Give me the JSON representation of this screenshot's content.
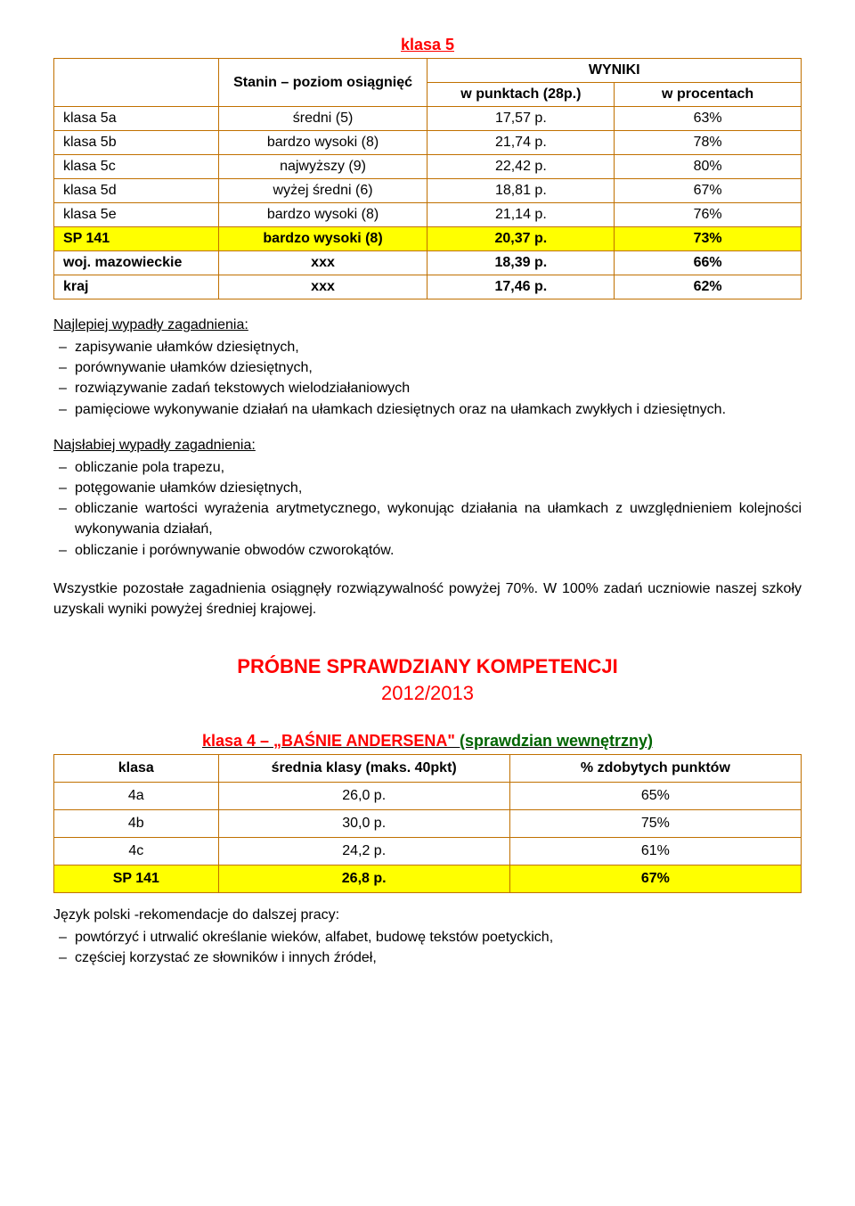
{
  "title": "klasa 5",
  "table1": {
    "header": {
      "stanin": "Stanin – poziom osiągnięć",
      "wyniki": "WYNIKI",
      "pkt": "w punktach (28p.)",
      "pct": "w procentach"
    },
    "rows": [
      {
        "c1": "klasa 5a",
        "c2": "średni (5)",
        "c3": "17,57 p.",
        "c4": "63%",
        "hl": false,
        "bold": false
      },
      {
        "c1": "klasa 5b",
        "c2": "bardzo wysoki (8)",
        "c3": "21,74 p.",
        "c4": "78%",
        "hl": false,
        "bold": false
      },
      {
        "c1": "klasa 5c",
        "c2": "najwyższy (9)",
        "c3": "22,42 p.",
        "c4": "80%",
        "hl": false,
        "bold": false
      },
      {
        "c1": "klasa 5d",
        "c2": "wyżej średni (6)",
        "c3": "18,81 p.",
        "c4": "67%",
        "hl": false,
        "bold": false
      },
      {
        "c1": "klasa 5e",
        "c2": "bardzo wysoki (8)",
        "c3": "21,14 p.",
        "c4": "76%",
        "hl": false,
        "bold": false
      },
      {
        "c1": "SP 141",
        "c2": "bardzo wysoki (8)",
        "c3": "20,37 p.",
        "c4": "73%",
        "hl": true,
        "bold": true
      },
      {
        "c1": "woj. mazowieckie",
        "c2": "xxx",
        "c3": "18,39 p.",
        "c4": "66%",
        "hl": false,
        "bold": true
      },
      {
        "c1": "kraj",
        "c2": "xxx",
        "c3": "17,46 p.",
        "c4": "62%",
        "hl": false,
        "bold": true
      }
    ]
  },
  "best": {
    "heading": "Najlepiej wypadły zagadnienia:",
    "items": [
      "zapisywanie ułamków dziesiętnych,",
      "porównywanie ułamków dziesiętnych,",
      "rozwiązywanie zadań tekstowych wielodziałaniowych",
      "pamięciowe wykonywanie działań na ułamkach dziesiętnych oraz na ułamkach zwykłych i dziesiętnych."
    ]
  },
  "worst": {
    "heading": "Najsłabiej wypadły zagadnienia:",
    "items": [
      "obliczanie pola trapezu,",
      "potęgowanie ułamków dziesiętnych,",
      "obliczanie wartości wyrażenia arytmetycznego, wykonując działania na ułamkach z uwzględnieniem kolejności wykonywania działań,",
      "obliczanie i porównywanie obwodów czworokątów."
    ]
  },
  "summary": "Wszystkie pozostałe zagadnienia osiągnęły rozwiązywalność powyżej 70%. W 100% zadań uczniowie naszej szkoły uzyskali wyniki powyżej średniej krajowej.",
  "section": {
    "title": "PRÓBNE SPRAWDZIANY KOMPETENCJI",
    "year": "2012/2013"
  },
  "sub": {
    "red": "klasa 4 – „BAŚNIE ANDERSENA\" ",
    "green": "(sprawdzian wewnętrzny)"
  },
  "table2": {
    "header": {
      "c1": "klasa",
      "c2": "średnia klasy (maks. 40pkt)",
      "c3": "% zdobytych punktów"
    },
    "rows": [
      {
        "c1": "4a",
        "c2": "26,0 p.",
        "c3": "65%",
        "hl": false
      },
      {
        "c1": "4b",
        "c2": "30,0 p.",
        "c3": "75%",
        "hl": false
      },
      {
        "c1": "4c",
        "c2": "24,2 p.",
        "c3": "61%",
        "hl": false
      },
      {
        "c1": "SP 141",
        "c2": "26,8 p.",
        "c3": "67%",
        "hl": true
      }
    ]
  },
  "rec": {
    "heading": "Język polski -rekomendacje do dalszej pracy:",
    "items": [
      "powtórzyć i utrwalić określanie wieków, alfabet, budowę tekstów poetyckich,",
      "częściej korzystać ze słowników i innych źródeł,"
    ]
  }
}
